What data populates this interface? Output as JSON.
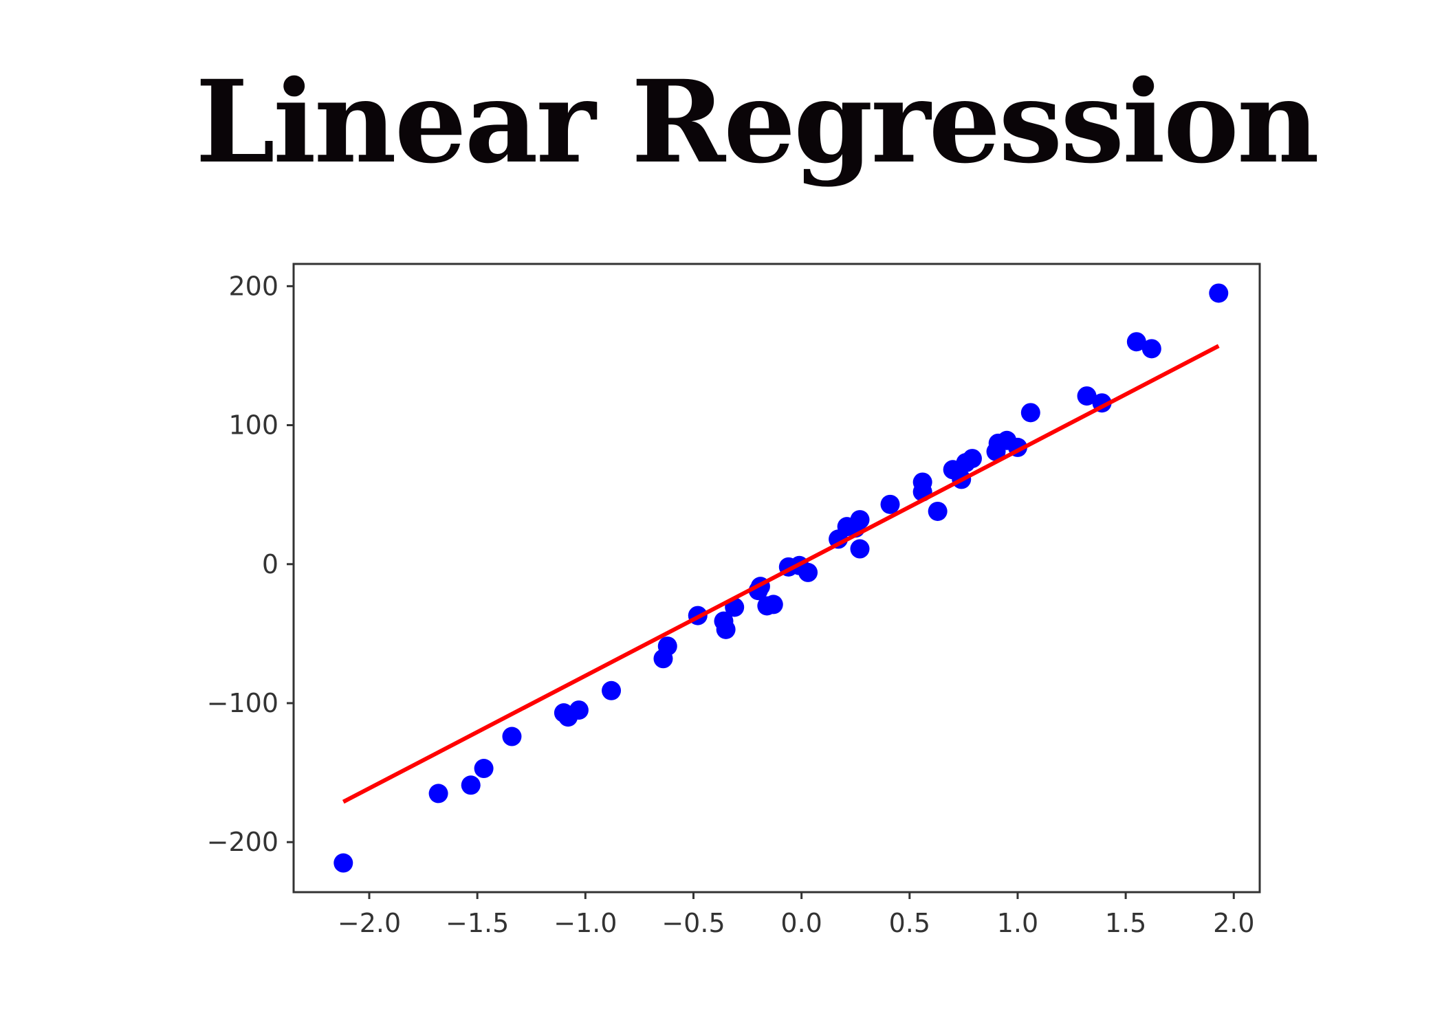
{
  "page": {
    "title": "Linear Regression"
  },
  "colors": {
    "points": "#0000ff",
    "regression_line": "#ff0000",
    "axes": "#333333",
    "title": "#0a0508"
  },
  "chart_data": {
    "type": "scatter",
    "title": "",
    "xlabel": "",
    "ylabel": "",
    "xlim": [
      -2.35,
      2.12
    ],
    "ylim": [
      -236,
      216
    ],
    "grid": false,
    "x_ticks": [
      -2.0,
      -1.5,
      -1.0,
      -0.5,
      0.0,
      0.5,
      1.0,
      1.5,
      2.0
    ],
    "x_tick_labels": [
      "−2.0",
      "−1.5",
      "−1.0",
      "−0.5",
      "0.0",
      "0.5",
      "1.0",
      "1.5",
      "2.0"
    ],
    "y_ticks": [
      200,
      100,
      0,
      -100,
      -200
    ],
    "y_tick_labels": [
      "200",
      "100",
      "0",
      "−100",
      "−200"
    ],
    "series": [
      {
        "kind": "points",
        "x": [
          -2.12,
          -1.68,
          -1.53,
          -1.47,
          -1.34,
          -1.1,
          -1.08,
          -1.03,
          -0.88,
          -0.64,
          -0.62,
          -0.48,
          -0.36,
          -0.35,
          -0.31,
          -0.2,
          -0.19,
          -0.16,
          -0.13,
          -0.06,
          -0.01,
          0.03,
          0.17,
          0.21,
          0.25,
          0.27,
          0.27,
          0.41,
          0.56,
          0.56,
          0.63,
          0.7,
          0.74,
          0.76,
          0.79,
          0.9,
          0.91,
          0.95,
          1.0,
          1.06,
          1.32,
          1.39,
          1.55,
          1.62,
          1.93
        ],
        "y": [
          -215,
          -165,
          -159,
          -147,
          -124,
          -107,
          -110,
          -105,
          -91,
          -68,
          -59,
          -37,
          -41,
          -47,
          -31,
          -19,
          -16,
          -30,
          -29,
          -2,
          -1,
          -6,
          18,
          27,
          26,
          32,
          11,
          43,
          52,
          59,
          38,
          68,
          61,
          73,
          76,
          81,
          87,
          89,
          84,
          109,
          121,
          116,
          160,
          155,
          195
        ]
      },
      {
        "kind": "line",
        "x": [
          -2.12,
          1.93
        ],
        "y": [
          -171,
          157
        ]
      }
    ]
  }
}
